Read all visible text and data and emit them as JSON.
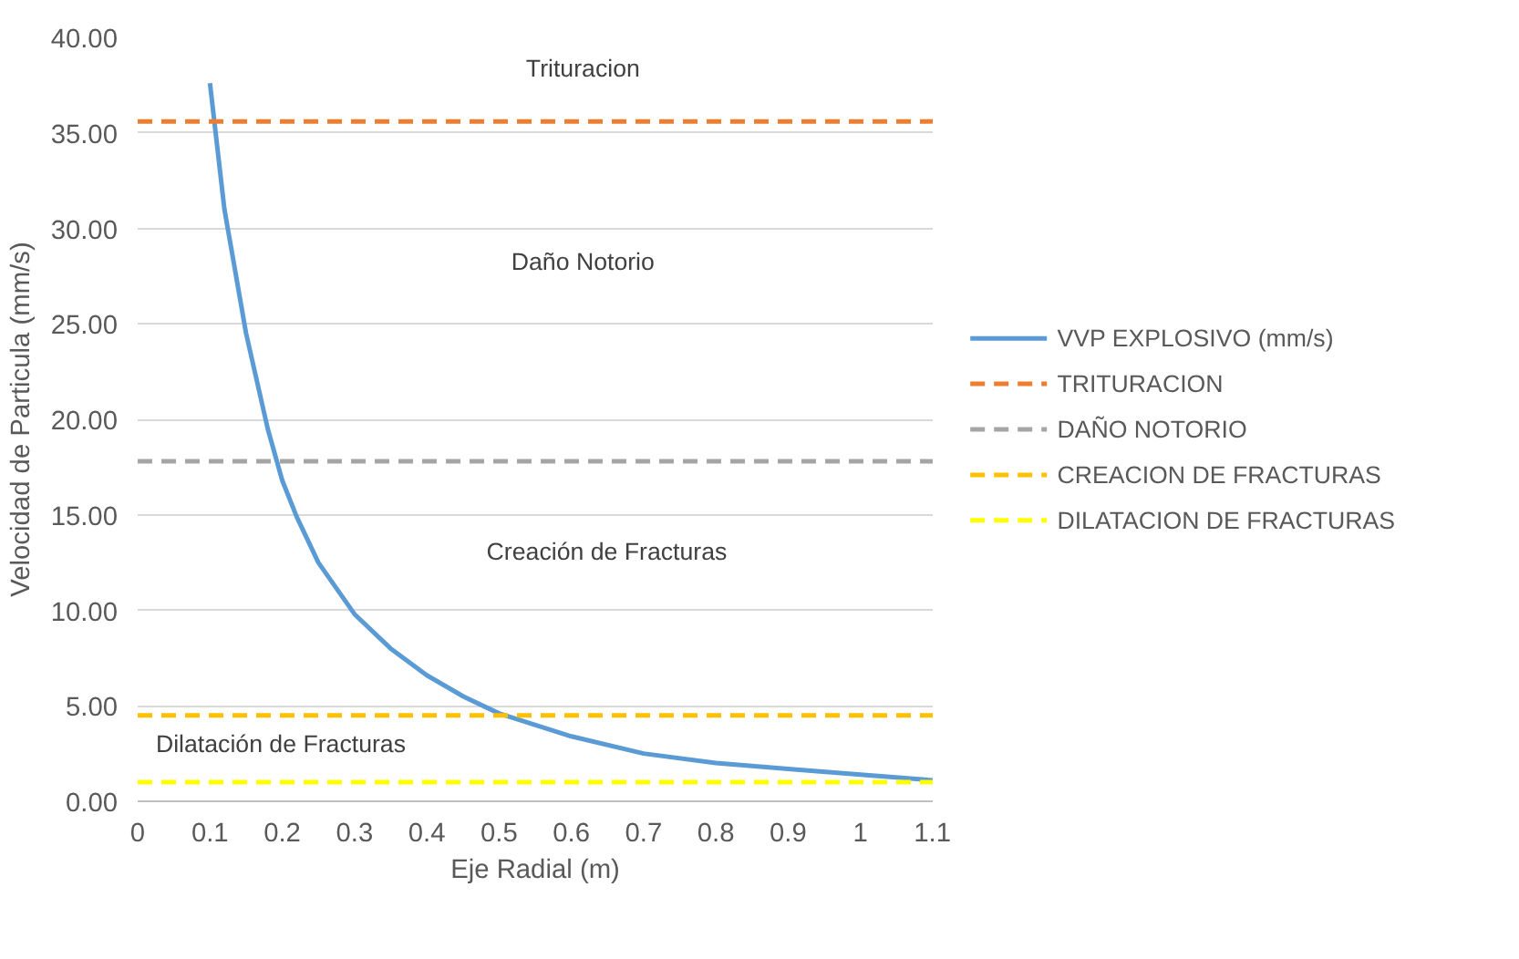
{
  "chart_data": {
    "type": "line",
    "xlabel": "Eje Radial (m)",
    "ylabel": "Velocidad de Particula (mm/s)",
    "xlim": [
      0,
      1.1
    ],
    "xticks": [
      0,
      0.1,
      0.2,
      0.3,
      0.4,
      0.5,
      0.6,
      0.7,
      0.8,
      0.9,
      1,
      1.1
    ],
    "ylim": [
      0,
      40
    ],
    "yticks": [
      {
        "value": 0,
        "label": "0.00"
      },
      {
        "value": 5,
        "label": "5.00"
      },
      {
        "value": 10,
        "label": "10.00"
      },
      {
        "value": 15,
        "label": "15.00"
      },
      {
        "value": 20,
        "label": "20.00"
      },
      {
        "value": 25,
        "label": "25.00"
      },
      {
        "value": 30,
        "label": "30.00"
      },
      {
        "value": 35,
        "label": "35.00"
      },
      {
        "value": 40,
        "label": "40.00"
      }
    ],
    "grid": "y",
    "legend": "right",
    "marker": "none",
    "series": [
      {
        "name": "VVP EXPLOSIVO (mm/s)",
        "color": "#5b9bd5",
        "line_style": "solid",
        "x": [
          0.1,
          0.12,
          0.15,
          0.18,
          0.2,
          0.22,
          0.25,
          0.3,
          0.35,
          0.4,
          0.45,
          0.5,
          0.6,
          0.7,
          0.8,
          0.9,
          1.0,
          1.1
        ],
        "values": [
          37.6,
          31,
          24.5,
          19.5,
          16.8,
          14.9,
          12.5,
          9.8,
          8.0,
          6.6,
          5.5,
          4.6,
          3.4,
          2.5,
          2.0,
          1.7,
          1.4,
          1.1
        ]
      },
      {
        "name": "TRITURACION",
        "color": "#ed7d31",
        "line_style": "dashed",
        "x": [
          0,
          1.1
        ],
        "values": [
          35.6,
          35.6
        ]
      },
      {
        "name": "DAÑO NOTORIO",
        "color": "#a5a5a5",
        "line_style": "dashed",
        "x": [
          0,
          1.1
        ],
        "values": [
          17.8,
          17.8
        ]
      },
      {
        "name": "CREACION DE FRACTURAS",
        "color": "#ffc000",
        "line_style": "dashed",
        "x": [
          0,
          1.1
        ],
        "values": [
          4.5,
          4.5
        ]
      },
      {
        "name": "DILATACION DE FRACTURAS",
        "color": "#ffff00",
        "line_style": "dashed",
        "x": [
          0,
          1.1
        ],
        "values": [
          1.0,
          1.0
        ]
      }
    ],
    "annotations": [
      "Trituracion",
      "Daño Notorio",
      "Creación de Fracturas",
      "Dilatación de Fracturas"
    ]
  }
}
